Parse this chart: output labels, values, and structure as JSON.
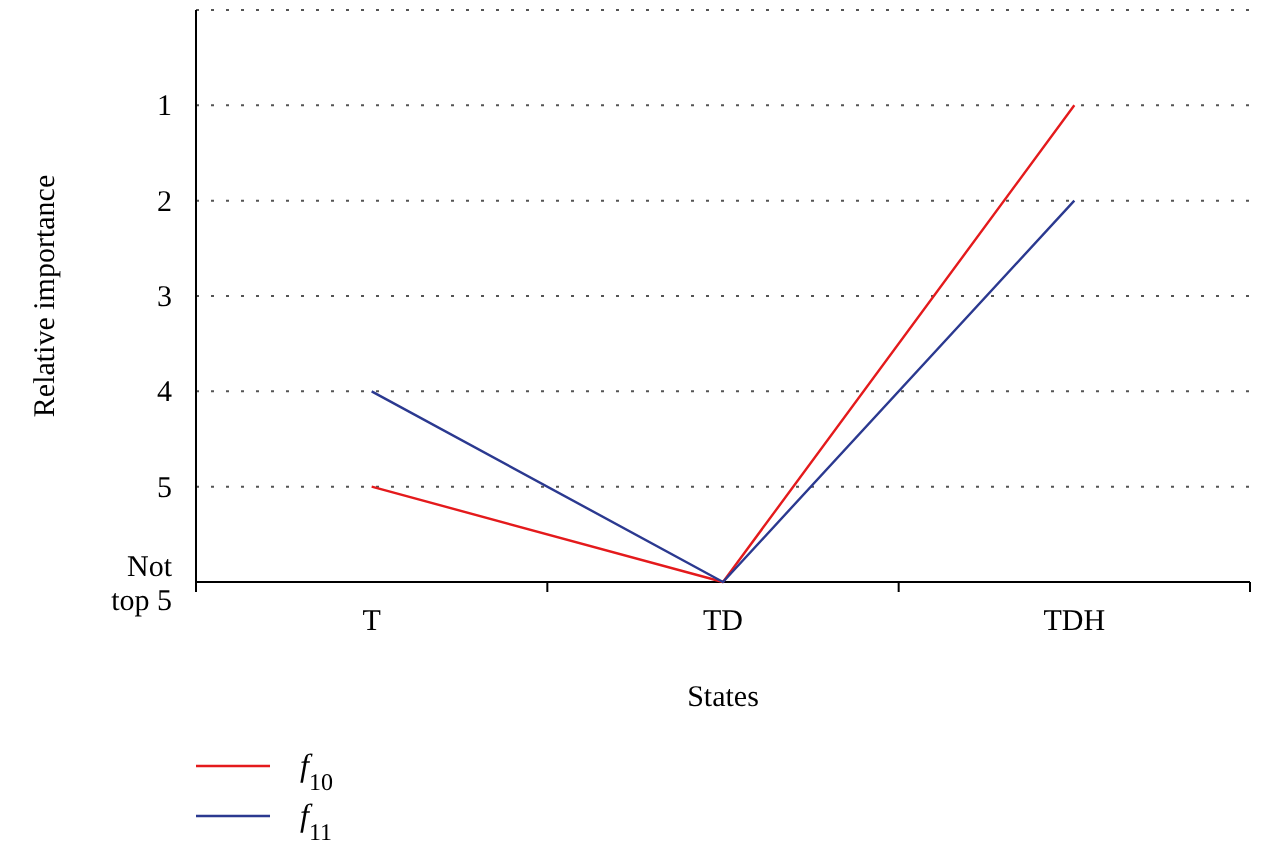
{
  "chart_data": {
    "type": "line",
    "xlabel": "States",
    "ylabel": "Relative importance",
    "categories": [
      "T",
      "TD",
      "TDH"
    ],
    "series": [
      {
        "name": "f$_{10}$",
        "color": "#e41a1c",
        "values": [
          5,
          6,
          1
        ]
      },
      {
        "name": "f$_{11}$",
        "color": "#2b3990",
        "values": [
          4,
          6,
          2
        ]
      }
    ],
    "ylim": [
      6,
      0
    ],
    "yticks": [
      {
        "value": 0,
        "label": null
      },
      1,
      2,
      3,
      4,
      5,
      {
        "value": 6,
        "label": "Not top 5"
      }
    ],
    "grid": "y",
    "legend": "bottom left",
    "marker": "none",
    "line_style": "solid"
  }
}
